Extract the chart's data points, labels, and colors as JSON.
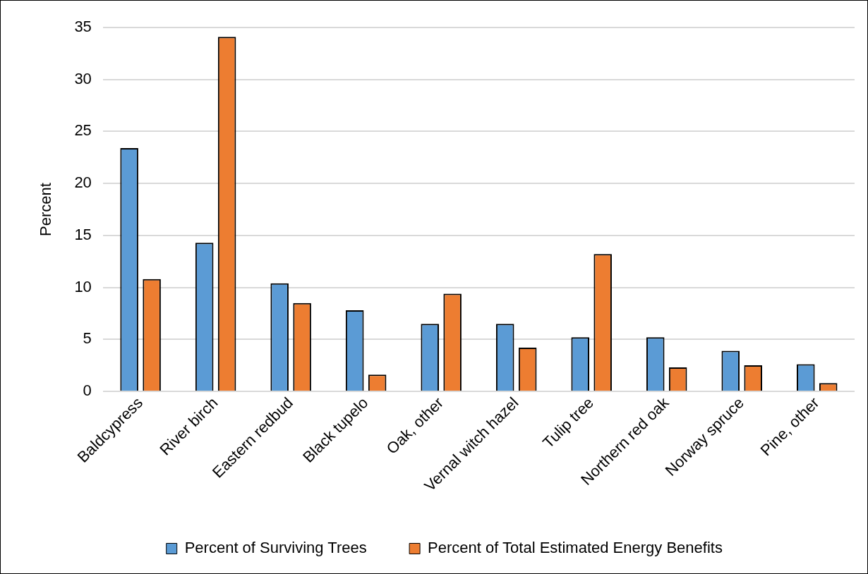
{
  "chart_data": {
    "type": "bar",
    "categories": [
      "Baldcypress",
      "River birch",
      "Eastern redbud",
      "Black tupelo",
      "Oak, other",
      "Vernal witch hazel",
      "Tulip tree",
      "Northern red oak",
      "Norway spruce",
      "Pine, other"
    ],
    "series": [
      {
        "name": "Percent of Surviving Trees",
        "color": "#5b9bd5",
        "values": [
          23.4,
          14.3,
          10.4,
          7.8,
          6.5,
          6.5,
          5.2,
          5.2,
          3.9,
          2.6
        ]
      },
      {
        "name": "Percent of Total Estimated Energy Benefits",
        "color": "#ed7d31",
        "values": [
          10.8,
          34.1,
          8.5,
          1.6,
          9.4,
          4.2,
          13.2,
          2.3,
          2.5,
          0.8
        ]
      }
    ],
    "ylabel": "Percent",
    "ylim": [
      0,
      35
    ],
    "yticks": [
      0,
      5,
      10,
      15,
      20,
      25,
      30,
      35
    ],
    "grid": "y",
    "legend": "bottom"
  }
}
